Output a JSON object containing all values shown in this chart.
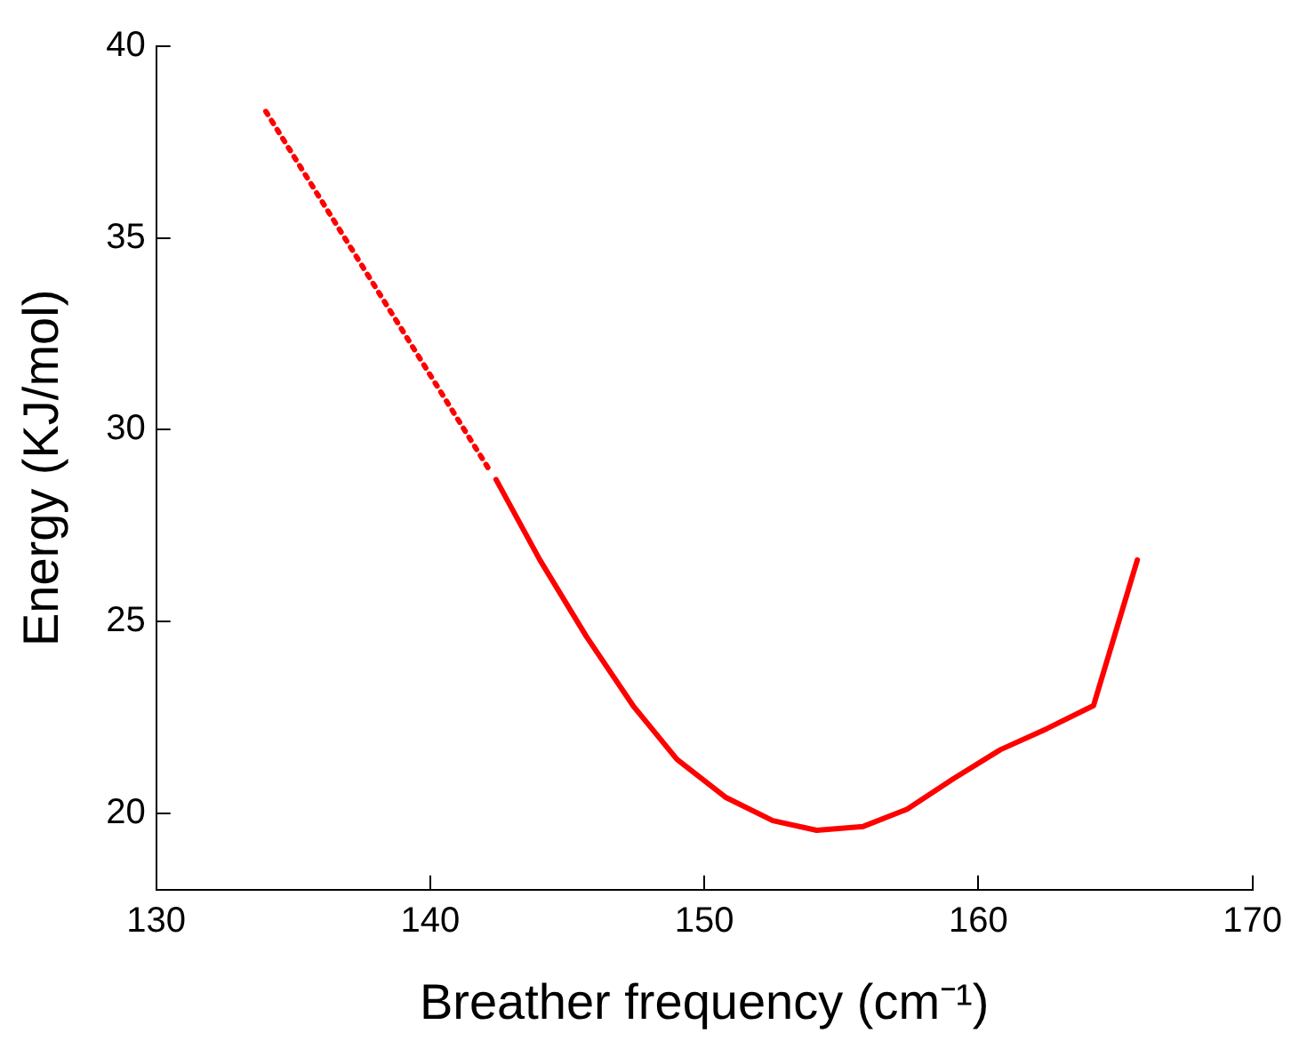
{
  "chart_data": {
    "type": "line",
    "xlabel": "Breather frequency (cm⁻¹)",
    "ylabel": "Energy (KJ/mol)",
    "xlim": [
      130,
      170
    ],
    "xticks": [
      130,
      140,
      150,
      160,
      170
    ],
    "ylim": [
      18,
      40
    ],
    "yticks": [
      20,
      25,
      30,
      35,
      40
    ],
    "grid": false,
    "legend": false,
    "marker": "none",
    "series": [
      {
        "color": "#ff0000",
        "line_style": "dotted",
        "x": [
          134.0,
          142.2
        ],
        "values": [
          38.3,
          28.9
        ]
      },
      {
        "color": "#ff0000",
        "line_style": "solid",
        "x": [
          142.4,
          144.0,
          145.7,
          147.4,
          149.0,
          150.8,
          152.5,
          154.1,
          155.8,
          157.4,
          159.1,
          160.8,
          162.5,
          164.2,
          165.8
        ],
        "values": [
          28.7,
          26.6,
          24.6,
          22.8,
          21.4,
          20.4,
          19.8,
          19.55,
          19.65,
          20.1,
          20.9,
          21.65,
          22.2,
          22.8,
          26.6
        ]
      }
    ]
  }
}
